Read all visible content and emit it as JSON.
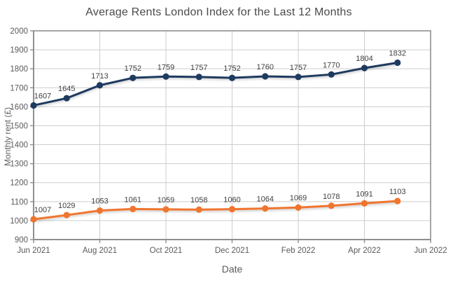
{
  "chart_data": {
    "type": "line",
    "title": "Average Rents London Index for the Last 12 Months",
    "xlabel": "Date",
    "ylabel": "Monthly rent (£)",
    "ylim": [
      900,
      2000
    ],
    "y_ticks": [
      900,
      1000,
      1100,
      1200,
      1300,
      1400,
      1500,
      1600,
      1700,
      1800,
      1900,
      2000
    ],
    "x_tick_labels": [
      "Jun 2021",
      "Aug 2021",
      "Oct 2021",
      "Dec 2021",
      "Feb 2022",
      "Apr 2022",
      "Jun 2022"
    ],
    "x_tick_positions": [
      0,
      2,
      4,
      6,
      8,
      10,
      12
    ],
    "x_axis_span_months": 12,
    "grid": true,
    "legend": "none",
    "data_labels": true,
    "series": [
      {
        "name": "navy-series",
        "color": "#1E3A5F",
        "x_months": [
          0,
          1,
          2,
          3,
          4,
          5,
          6,
          7,
          8,
          9,
          10,
          11
        ],
        "values": [
          1607,
          1645,
          1713,
          1752,
          1759,
          1757,
          1752,
          1760,
          1757,
          1770,
          1804,
          1832
        ]
      },
      {
        "name": "orange-series",
        "color": "#F0752F",
        "x_months": [
          0,
          1,
          2,
          3,
          4,
          5,
          6,
          7,
          8,
          9,
          10,
          11
        ],
        "values": [
          1007,
          1029,
          1053,
          1061,
          1059,
          1058,
          1060,
          1064,
          1069,
          1078,
          1091,
          1103
        ]
      }
    ],
    "style": {
      "grid_color": "#CDCDCD",
      "axis_color": "#8F8F8F",
      "title_color": "#4A4A4A",
      "tick_label_color": "#595959",
      "data_label_color": "#404040",
      "background": "#FFFFFF"
    }
  }
}
